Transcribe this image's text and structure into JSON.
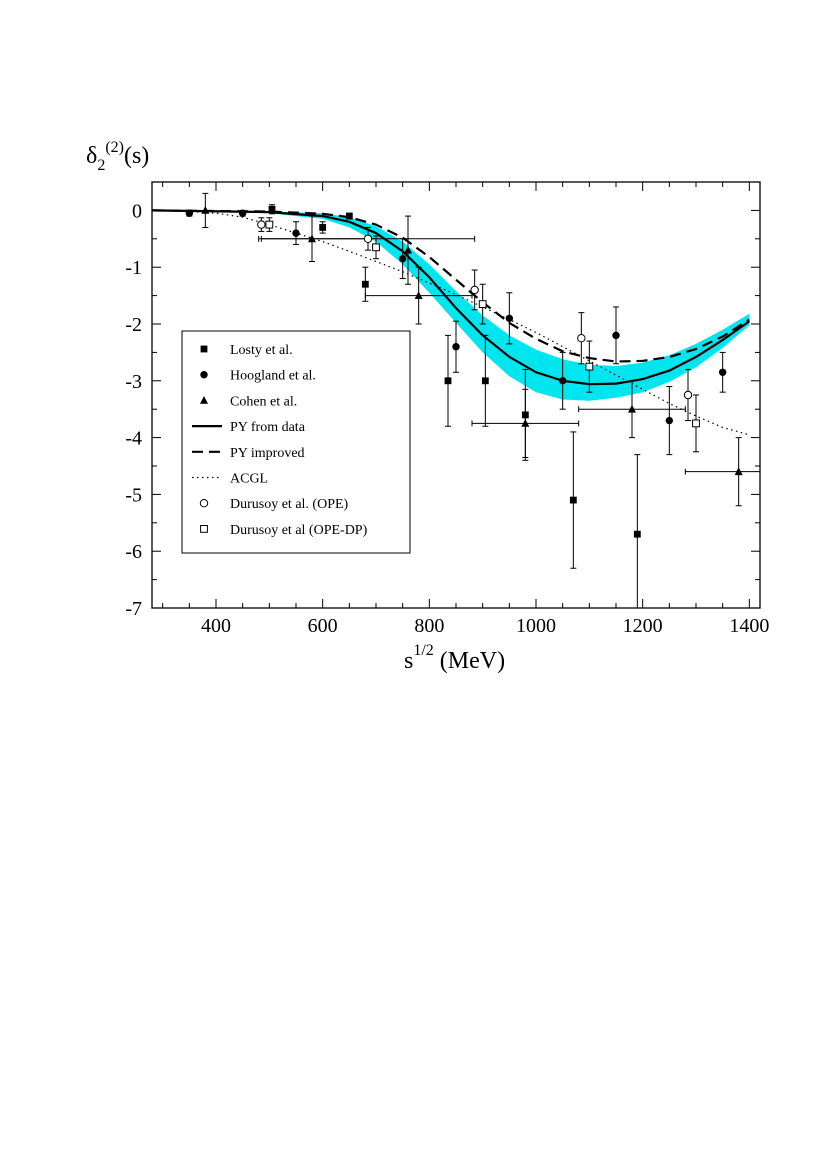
{
  "chart_data": {
    "type": "scatter",
    "ylabel": {
      "base": "δ",
      "sub": "2",
      "sup": "(2)",
      "suffix": "(s)"
    },
    "xlabel": {
      "base": "s",
      "sup": "1/2",
      "suffix": " (MeV)"
    },
    "xlim": [
      280,
      1420
    ],
    "ylim": [
      -7,
      0.5
    ],
    "xticks": [
      400,
      600,
      800,
      1000,
      1200,
      1400
    ],
    "yticks": [
      0,
      -1,
      -2,
      -3,
      -4,
      -5,
      -6,
      -7
    ],
    "grid": false,
    "legend_position": "center-left",
    "band": {
      "color": "#00e5ee",
      "x": [
        280,
        500,
        600,
        650,
        700,
        750,
        800,
        850,
        900,
        950,
        1000,
        1050,
        1100,
        1150,
        1200,
        1250,
        1300,
        1350,
        1400
      ],
      "upper": [
        0,
        -0.02,
        -0.05,
        -0.12,
        -0.28,
        -0.55,
        -0.95,
        -1.42,
        -1.85,
        -2.2,
        -2.45,
        -2.62,
        -2.72,
        -2.74,
        -2.68,
        -2.55,
        -2.35,
        -2.1,
        -1.82
      ],
      "lower": [
        0,
        -0.05,
        -0.15,
        -0.3,
        -0.55,
        -0.95,
        -1.45,
        -1.98,
        -2.5,
        -2.92,
        -3.2,
        -3.33,
        -3.35,
        -3.3,
        -3.2,
        -3.02,
        -2.76,
        -2.42,
        -2.02
      ]
    },
    "series": [
      {
        "name": "Losty et al.",
        "marker": "square-filled",
        "points": [
          {
            "x": 505,
            "y": 0.02,
            "yerr": 0.08
          },
          {
            "x": 600,
            "y": -0.3,
            "yerr": 0.1
          },
          {
            "x": 650,
            "y": -0.1,
            "yerr": 0.05
          },
          {
            "x": 680,
            "y": -1.3,
            "yerr": 0.3
          },
          {
            "x": 835,
            "y": -3.0,
            "yerr": 0.8
          },
          {
            "x": 905,
            "y": -3.0,
            "yerr": 0.8
          },
          {
            "x": 980,
            "y": -3.6,
            "yerr": 0.8
          },
          {
            "x": 1070,
            "y": -5.1,
            "yerr": 1.2
          },
          {
            "x": 1190,
            "y": -5.7,
            "yerr": 1.4
          }
        ]
      },
      {
        "name": "Hoogland et al.",
        "marker": "circle-filled",
        "points": [
          {
            "x": 350,
            "y": -0.05,
            "yerr": 0.05
          },
          {
            "x": 450,
            "y": -0.05,
            "yerr": 0.05
          },
          {
            "x": 550,
            "y": -0.4,
            "yerr": 0.2
          },
          {
            "x": 750,
            "y": -0.85,
            "yerr": 0.35
          },
          {
            "x": 850,
            "y": -2.4,
            "yerr": 0.45
          },
          {
            "x": 950,
            "y": -1.9,
            "yerr": 0.45
          },
          {
            "x": 1050,
            "y": -3.0,
            "yerr": 0.5
          },
          {
            "x": 1150,
            "y": -2.2,
            "yerr": 0.5
          },
          {
            "x": 1250,
            "y": -3.7,
            "yerr": 0.6
          },
          {
            "x": 1350,
            "y": -2.85,
            "yerr": 0.35
          }
        ]
      },
      {
        "name": "Cohen et al.",
        "marker": "triangle-filled",
        "points": [
          {
            "x": 380,
            "y": 0.0,
            "yerr": 0.3
          },
          {
            "x": 580,
            "y": -0.5,
            "yerr": 0.4,
            "xerr": 100
          },
          {
            "x": 760,
            "y": -0.7,
            "yerr": 0.6
          },
          {
            "x": 780,
            "y": -1.5,
            "yerr": 0.5,
            "xerr": 100
          },
          {
            "x": 980,
            "y": -3.75,
            "yerr": 0.6,
            "xerr": 100
          },
          {
            "x": 1180,
            "y": -3.5,
            "yerr": 0.5,
            "xerr": 100
          },
          {
            "x": 1380,
            "y": -4.6,
            "yerr": 0.6,
            "xerr": 100
          }
        ]
      },
      {
        "name": "PY from data",
        "line": "solid",
        "x": [
          280,
          500,
          600,
          650,
          700,
          750,
          800,
          850,
          900,
          950,
          1000,
          1050,
          1100,
          1150,
          1200,
          1250,
          1300,
          1350,
          1400
        ],
        "y": [
          0,
          -0.03,
          -0.1,
          -0.2,
          -0.4,
          -0.72,
          -1.18,
          -1.72,
          -2.2,
          -2.58,
          -2.85,
          -3.0,
          -3.06,
          -3.05,
          -2.97,
          -2.82,
          -2.58,
          -2.28,
          -1.95
        ]
      },
      {
        "name": "PY improved",
        "line": "dashed",
        "x": [
          280,
          500,
          600,
          650,
          700,
          750,
          800,
          850,
          900,
          950,
          1000,
          1050,
          1100,
          1150,
          1200,
          1250,
          1300,
          1350,
          1400
        ],
        "y": [
          0,
          -0.02,
          -0.06,
          -0.12,
          -0.25,
          -0.48,
          -0.82,
          -1.22,
          -1.62,
          -1.98,
          -2.26,
          -2.48,
          -2.6,
          -2.66,
          -2.65,
          -2.58,
          -2.44,
          -2.22,
          -1.92
        ]
      },
      {
        "name": "ACGL",
        "line": "dotted",
        "x": [
          280,
          350,
          400,
          450,
          500,
          550,
          600,
          650,
          700,
          750,
          800,
          850,
          900,
          950,
          1000,
          1050,
          1100,
          1150,
          1200,
          1250,
          1300,
          1350,
          1400
        ],
        "y": [
          0,
          -0.02,
          -0.05,
          -0.12,
          -0.25,
          -0.4,
          -0.55,
          -0.72,
          -0.9,
          -1.08,
          -1.28,
          -1.48,
          -1.7,
          -1.92,
          -2.15,
          -2.4,
          -2.65,
          -2.9,
          -3.15,
          -3.4,
          -3.62,
          -3.82,
          -3.95
        ]
      },
      {
        "name": "Durusoy et al. (OPE)",
        "marker": "circle-open",
        "points": [
          {
            "x": 485,
            "y": -0.25,
            "yerr": 0.12
          },
          {
            "x": 685,
            "y": -0.5,
            "yerr": 0.2,
            "xerr": 200
          },
          {
            "x": 885,
            "y": -1.4,
            "yerr": 0.35
          },
          {
            "x": 1085,
            "y": -2.25,
            "yerr": 0.45
          },
          {
            "x": 1285,
            "y": -3.25,
            "yerr": 0.45
          }
        ]
      },
      {
        "name": "Durusoy et al (OPE-DP)",
        "marker": "square-open",
        "points": [
          {
            "x": 500,
            "y": -0.25,
            "yerr": 0.12
          },
          {
            "x": 700,
            "y": -0.65,
            "yerr": 0.2
          },
          {
            "x": 900,
            "y": -1.65,
            "yerr": 0.35
          },
          {
            "x": 1100,
            "y": -2.75,
            "yerr": 0.45
          },
          {
            "x": 1300,
            "y": -3.75,
            "yerr": 0.5
          }
        ]
      }
    ]
  }
}
